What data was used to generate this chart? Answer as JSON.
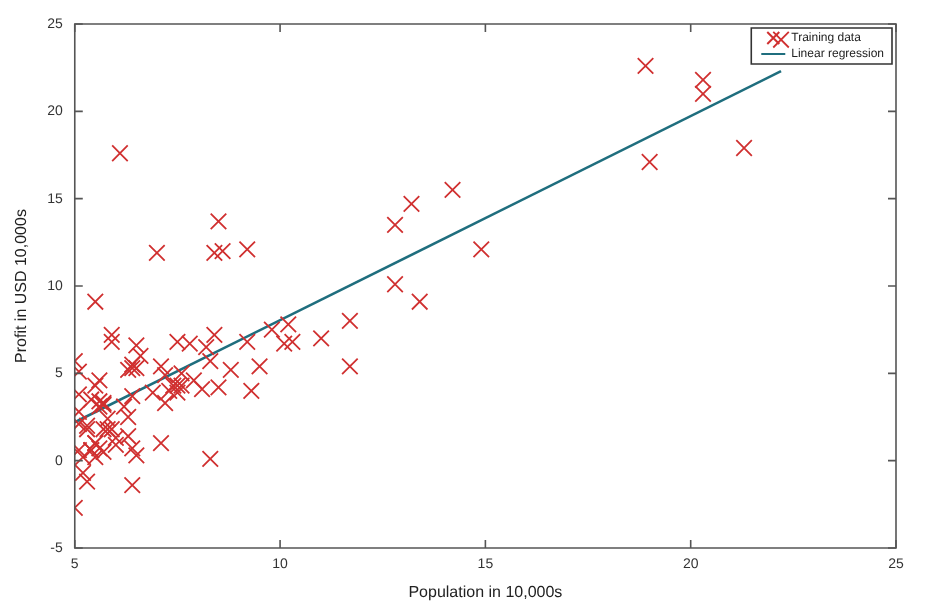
{
  "chart_data": {
    "type": "scatter",
    "xlabel": "Population in 10,000s",
    "ylabel": "Profit in USD 10,000s",
    "xlim": [
      5,
      25
    ],
    "ylim": [
      -5,
      25
    ],
    "xticks": [
      5,
      10,
      15,
      20,
      25
    ],
    "yticks": [
      -5,
      0,
      5,
      10,
      15,
      20,
      25
    ],
    "legend": "top right",
    "grid": false,
    "series": [
      {
        "name": "Training data",
        "color": "#d03030",
        "marker": "cross",
        "x": [
          6.1,
          5.5,
          8.5,
          7.0,
          5.9,
          8.4,
          7.5,
          8.6,
          6.5,
          5.1,
          5.7,
          14.2,
          5.7,
          8.4,
          5.6,
          5.4,
          6.4,
          5.1,
          6.4,
          7.1,
          6.2,
          20.3,
          5.5,
          6.3,
          5.6,
          18.9,
          12.8,
          11.0,
          13.2,
          22.2,
          5.3,
          6.6,
          9.2,
          5.9,
          8.2,
          7.9,
          8.1,
          5.6,
          12.8,
          6.4,
          5.4,
          6.9,
          11.7,
          5.8,
          7.8,
          7.1,
          5.1,
          5.8,
          11.7,
          5.5,
          7.5,
          5.3,
          7.4,
          7.6,
          6.3,
          6.4,
          6.3,
          5.6,
          9.3,
          9.5,
          8.8,
          5.2,
          21.3,
          14.9,
          19.0,
          7.2,
          8.3,
          10.2,
          5.5,
          20.3,
          10.1,
          7.3,
          6.0,
          7.2,
          5.0,
          6.5,
          7.5,
          5.0,
          10.3,
          5.1,
          5.7,
          5.2,
          6.4,
          9.8,
          6.5,
          8.5,
          9.2,
          6.0,
          5.5,
          5.1,
          5.7,
          7.6,
          5.9,
          5.3,
          8.3,
          13.4,
          5.4
        ],
        "values": [
          17.6,
          9.1,
          13.7,
          11.9,
          6.8,
          11.9,
          4.3,
          12.0,
          6.6,
          3.8,
          3.3,
          15.5,
          3.2,
          7.2,
          0.7,
          3.5,
          5.3,
          0.6,
          3.7,
          5.4,
          3.1,
          21.8,
          4.3,
          5.2,
          3.1,
          22.6,
          13.5,
          7.0,
          14.7,
          24.1,
          -1.2,
          6.0,
          12.1,
          1.8,
          6.5,
          4.6,
          4.1,
          3.4,
          10.1,
          5.5,
          0.6,
          3.9,
          5.4,
          2.4,
          6.7,
          1.0,
          5.1,
          1.8,
          8.0,
          1.0,
          6.8,
          1.8,
          4.3,
          5.0,
          1.4,
          -1.4,
          2.5,
          4.6,
          4.0,
          5.4,
          5.2,
          -0.7,
          17.9,
          12.1,
          17.1,
          4.9,
          5.7,
          7.8,
          1.0,
          21.0,
          6.7,
          4.0,
          1.3,
          3.3,
          -2.7,
          0.3,
          3.9,
          5.7,
          6.8,
          2.1,
          0.5,
          0.2,
          0.7,
          7.5,
          5.3,
          4.2,
          6.8,
          0.9,
          0.2,
          2.8,
          1.8,
          4.3,
          7.2,
          2.0,
          0.1,
          9.1,
          0.6
        ]
      },
      {
        "name": "Linear regression",
        "type": "line",
        "color": "#1f6e7e",
        "marker": "none",
        "x": [
          5.0,
          22.2
        ],
        "values": [
          2.2,
          22.3
        ]
      }
    ]
  }
}
